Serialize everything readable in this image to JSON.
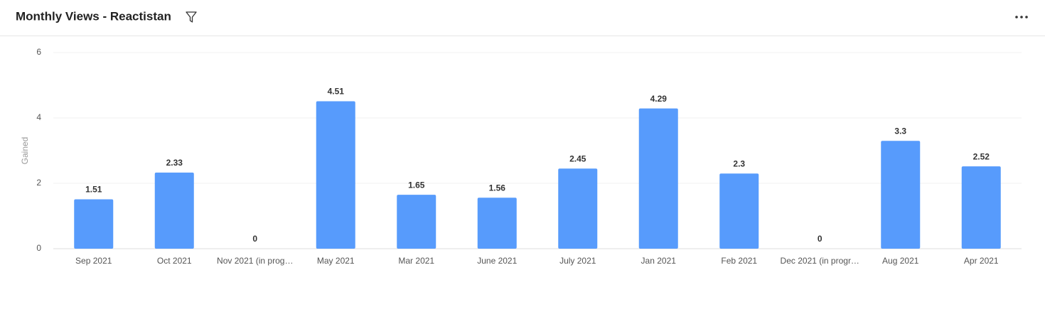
{
  "chart_data": {
    "type": "bar",
    "title": "Monthly Views - Reactistan",
    "y_label": "Gained",
    "categories": [
      "Sep 2021",
      "Oct 2021",
      "Nov 2021 (in prog…",
      "May 2021",
      "Mar 2021",
      "June 2021",
      "July 2021",
      "Jan 2021",
      "Feb 2021",
      "Dec 2021 (in progr…",
      "Aug 2021",
      "Apr 2021"
    ],
    "values": [
      1.51,
      2.33,
      0,
      4.51,
      1.65,
      1.56,
      2.45,
      4.29,
      2.3,
      0,
      3.3,
      2.52
    ],
    "color": "#579bfc",
    "ylim": [
      0,
      6
    ],
    "yticks": [
      0,
      2,
      4,
      6
    ],
    "grid": true
  }
}
